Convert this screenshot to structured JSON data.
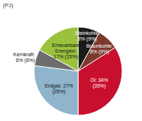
{
  "chart_data": {
    "type": "pie",
    "title": "(PJ)",
    "categories": [
      "Steinkohle",
      "Braunkohle",
      "Öl",
      "Erdgas",
      "Kernkraft",
      "Erneuerbare Energien"
    ],
    "values": [
      8,
      8,
      34,
      27,
      6,
      17
    ],
    "value_labels": [
      "Steinkohle: 8% (9%)",
      "Braunkohle: 8% (9%)",
      "Öl: 34% (35%)",
      "Erdgas: 27% (25%)",
      "Kernkraft: 6% (6%)",
      "Erneuerbare Energien: 17% (15%)"
    ],
    "colors": [
      "#1a1a1a",
      "#7a3b2e",
      "#c8102e",
      "#8fb4cc",
      "#6d6d6d",
      "#9bc23c"
    ],
    "data_labels": true
  }
}
